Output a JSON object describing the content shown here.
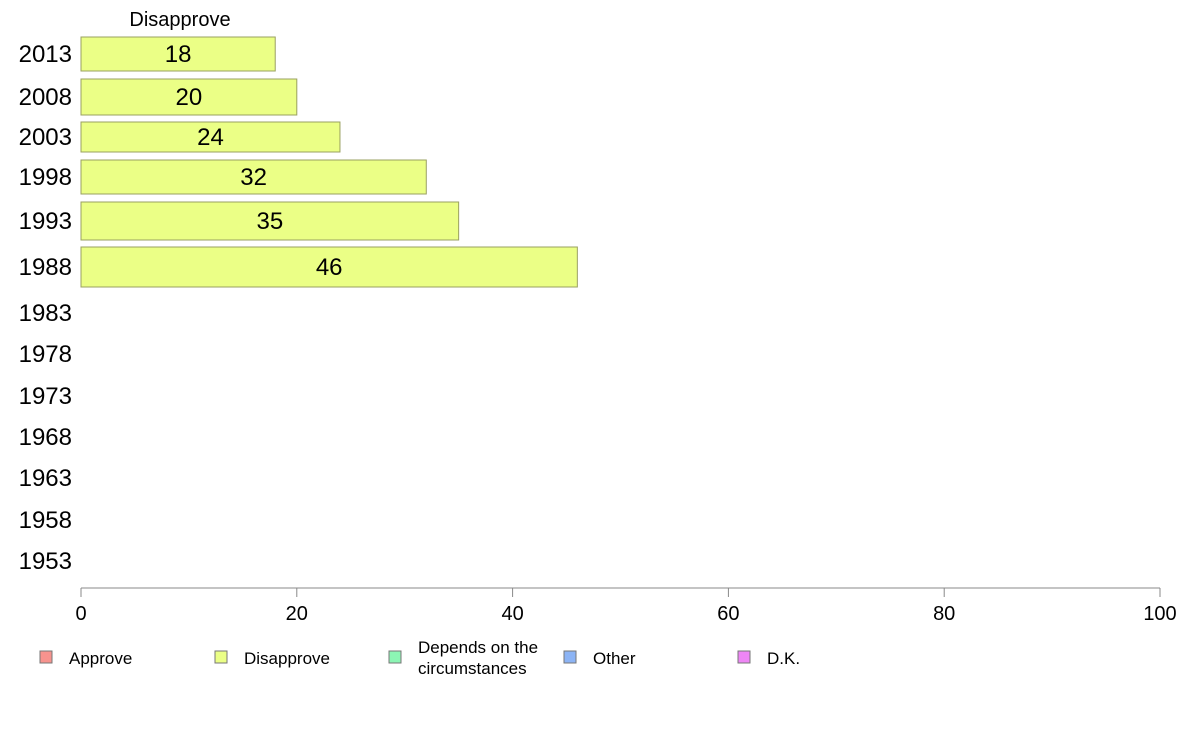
{
  "chart_data": {
    "type": "bar",
    "orientation": "horizontal",
    "header": "Disapprove",
    "categories": [
      "2013",
      "2008",
      "2003",
      "1998",
      "1993",
      "1988",
      "1983",
      "1978",
      "1973",
      "1968",
      "1963",
      "1958",
      "1953"
    ],
    "series": [
      {
        "name": "Disapprove",
        "color": "#EBFF86",
        "values": [
          18,
          20,
          24,
          32,
          35,
          46,
          null,
          null,
          null,
          null,
          null,
          null,
          null
        ]
      }
    ],
    "data_labels": [
      "18",
      "20",
      "24",
      "32",
      "35",
      "46"
    ],
    "x_ticks": [
      "0",
      "20",
      "40",
      "60",
      "80",
      "100"
    ],
    "xlim": [
      0,
      100
    ],
    "grid": false,
    "legend_position": "bottom",
    "legend": [
      {
        "label": "Approve",
        "color": "#F7938E"
      },
      {
        "label": "Disapprove",
        "color": "#EBFF86"
      },
      {
        "label": "Depends on the circumstances",
        "lines": [
          "Depends on the",
          "circumstances"
        ],
        "color": "#8CF5B4"
      },
      {
        "label": "Other",
        "color": "#8CB4F5"
      },
      {
        "label": "D.K.",
        "color": "#EE86F5"
      }
    ]
  }
}
